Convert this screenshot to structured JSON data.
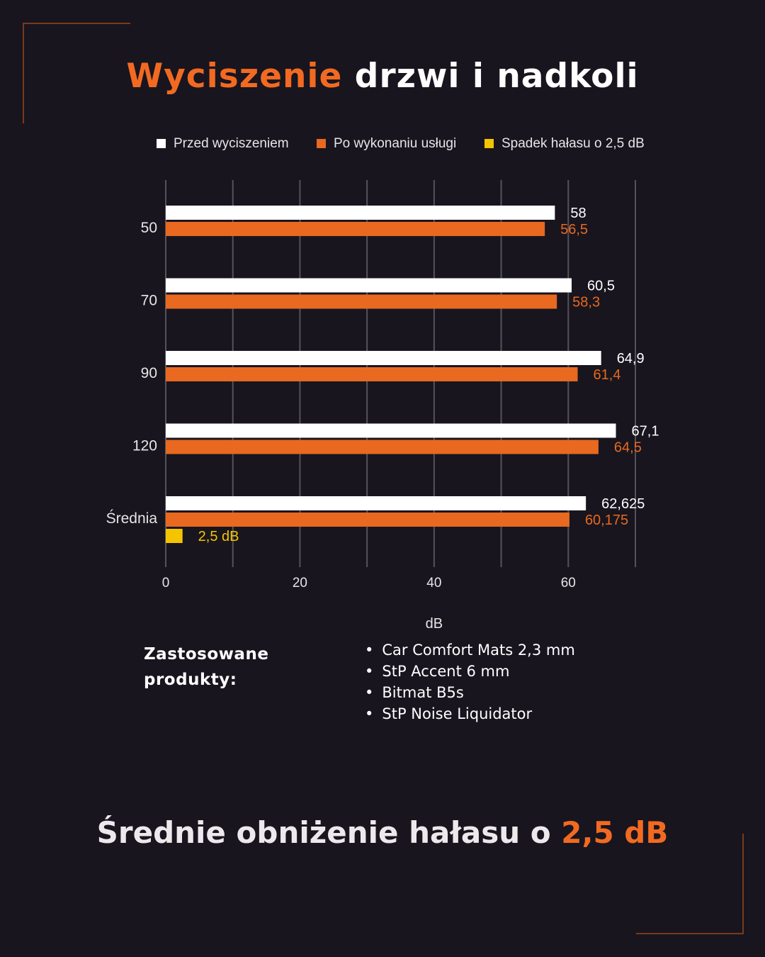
{
  "header": {
    "title_accent": "Wyciszenie",
    "title_rest": "drzwi i nadkoli"
  },
  "colors": {
    "background": "#18151f",
    "accent": "#f26a21",
    "before": "#ffffff",
    "after": "#e8691f",
    "drop": "#f5c400",
    "grid": "#55525a"
  },
  "chart_data": {
    "type": "bar",
    "orientation": "horizontal",
    "categories": [
      "50",
      "70",
      "90",
      "120",
      "Średnia"
    ],
    "series": [
      {
        "name": "Przed wyciszeniem",
        "values": [
          58,
          60.5,
          64.9,
          67.1,
          62.625
        ],
        "labels": [
          "58",
          "60,5",
          "64,9",
          "67,1",
          "62,625"
        ]
      },
      {
        "name": "Po wykonaniu usługi",
        "values": [
          56.5,
          58.3,
          61.4,
          64.5,
          60.175
        ],
        "labels": [
          "56,5",
          "58,3",
          "61,4",
          "64,5",
          "60,175"
        ]
      },
      {
        "name": "Spadek hałasu o 2,5 dB",
        "values": [
          null,
          null,
          null,
          null,
          2.5
        ],
        "labels": [
          "",
          "",
          "",
          "",
          "2,5 dB"
        ]
      }
    ],
    "xlabel": "dB",
    "ylabel": "",
    "xlim": [
      0,
      70
    ],
    "xticks": [
      "0",
      "20",
      "40",
      "60"
    ],
    "grid": true,
    "legend": "top"
  },
  "products": {
    "heading_line1": "Zastosowane",
    "heading_line2": "produkty:",
    "items": [
      "Car Comfort Mats 2,3 mm",
      "StP Accent 6 mm",
      "Bitmat B5s",
      "StP Noise Liquidator"
    ]
  },
  "summary": {
    "text": "Średnie obniżenie hałasu o",
    "highlight": "2,5 dB"
  }
}
